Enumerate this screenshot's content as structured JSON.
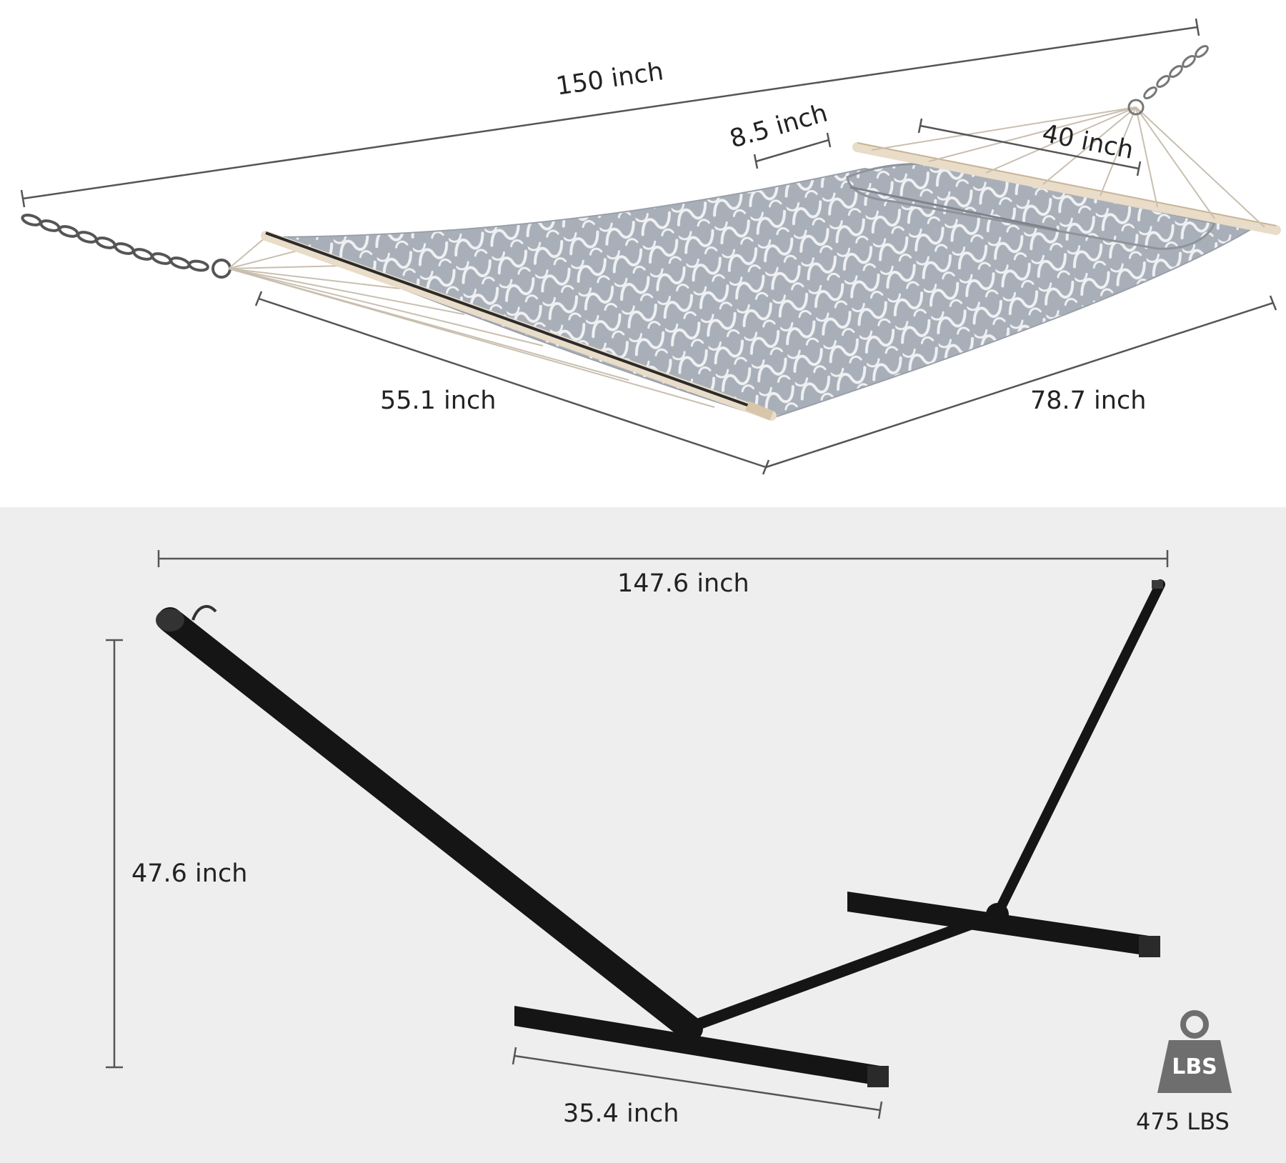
{
  "hammock": {
    "total_length": "150 inch",
    "pillow_width": "8.5 inch",
    "spreader_to_ring": "40 inch",
    "bed_width": "55.1 inch",
    "bed_length": "78.7 inch"
  },
  "stand": {
    "length": "147.6 inch",
    "height": "47.6 inch",
    "base_width": "35.4 inch"
  },
  "capacity": {
    "weight_icon_label": "LBS",
    "max_load": "475 LBS"
  },
  "colors": {
    "dimension_line": "#555555",
    "fabric": "#a9afb8",
    "fabric_pattern": "#eef0f3",
    "spreader_bar": "#e9dcc8",
    "stand_frame": "#151515",
    "bottom_background": "#eeeeee",
    "weight_icon": "#6e6e6e"
  }
}
